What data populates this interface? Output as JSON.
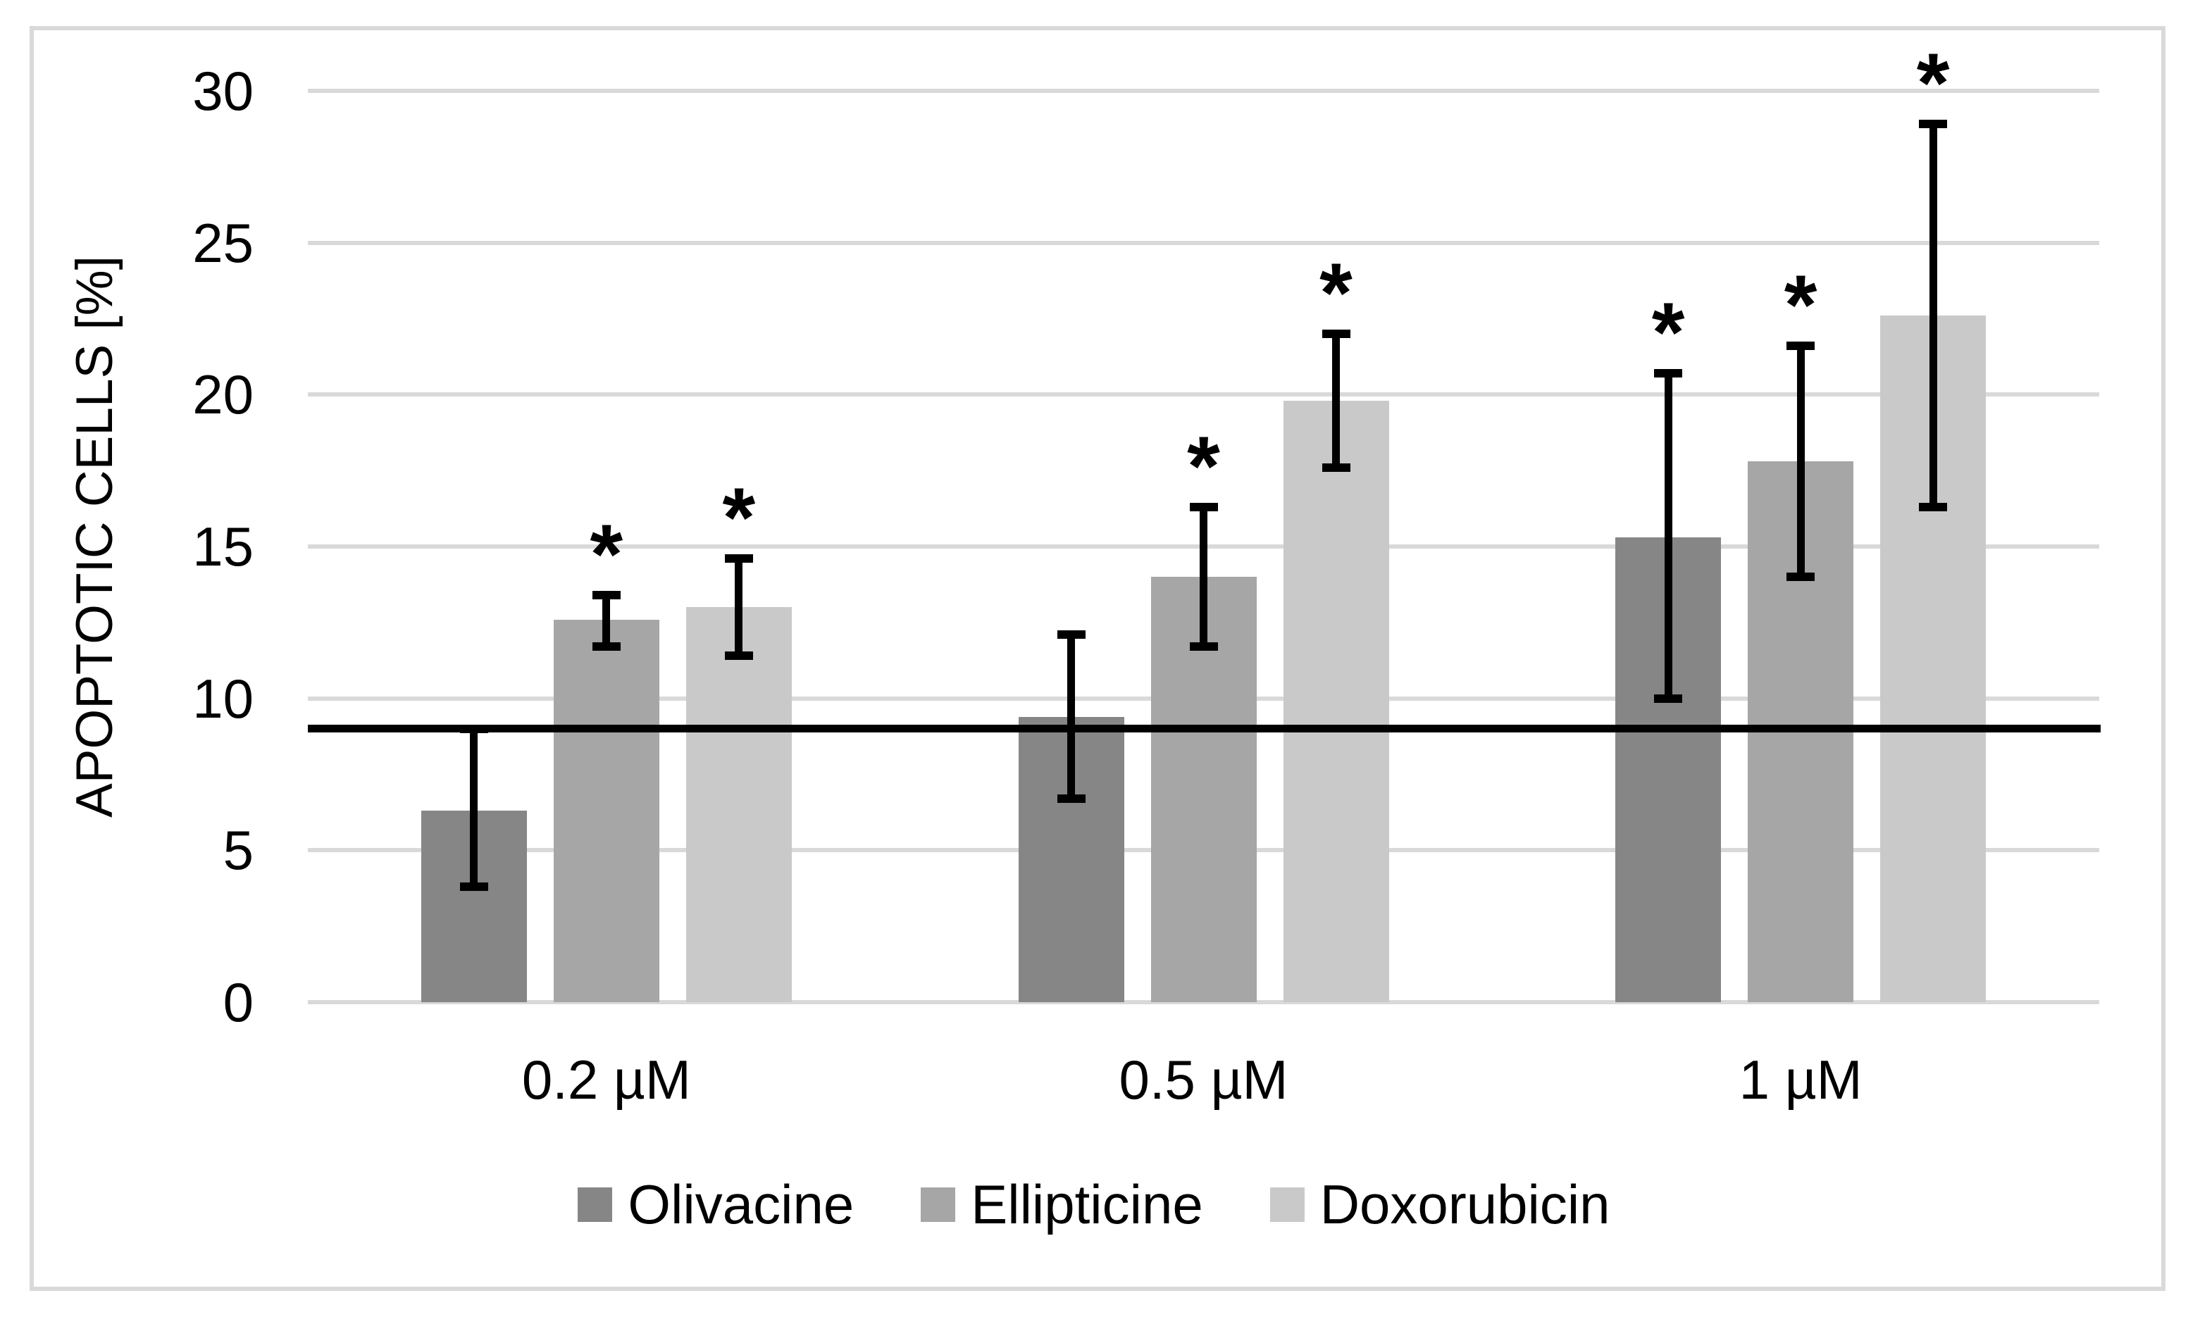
{
  "figure": {
    "background_color": "#ffffff",
    "border_color": "#d9d9d9",
    "gridline_color": "#d9d9d9",
    "text_color": "#000000"
  },
  "chart_data": {
    "type": "bar",
    "title": "",
    "xlabel": "",
    "ylabel": "APOPTOTIC CELLS [%]",
    "ylim": [
      0,
      30
    ],
    "yticks": [
      0,
      5,
      10,
      15,
      20,
      25,
      30
    ],
    "grid": true,
    "legend_position": "bottom",
    "error_bars": true,
    "significance_marker": "*",
    "categories": [
      "0.2 µM",
      "0.5 µM",
      "1 µM"
    ],
    "series": [
      {
        "name": "Olivacine",
        "color": "#868686",
        "values": [
          6.3,
          9.4,
          15.3
        ],
        "err_low": [
          3.8,
          6.7,
          10.0
        ],
        "err_high": [
          9.0,
          12.1,
          20.7
        ],
        "significant": [
          false,
          false,
          true
        ]
      },
      {
        "name": "Ellipticine",
        "color": "#a6a6a6",
        "values": [
          12.6,
          14.0,
          17.8
        ],
        "err_low": [
          11.7,
          11.7,
          14.0
        ],
        "err_high": [
          13.4,
          16.3,
          21.6
        ],
        "significant": [
          true,
          true,
          true
        ]
      },
      {
        "name": "Doxorubicin",
        "color": "#c9c9c9",
        "values": [
          13.0,
          19.8,
          22.6
        ],
        "err_low": [
          11.4,
          17.6,
          16.3
        ],
        "err_high": [
          14.6,
          22.0,
          28.9
        ],
        "significant": [
          true,
          true,
          true
        ]
      }
    ],
    "reference_line": {
      "value": 9.0,
      "color": "#000000"
    }
  }
}
